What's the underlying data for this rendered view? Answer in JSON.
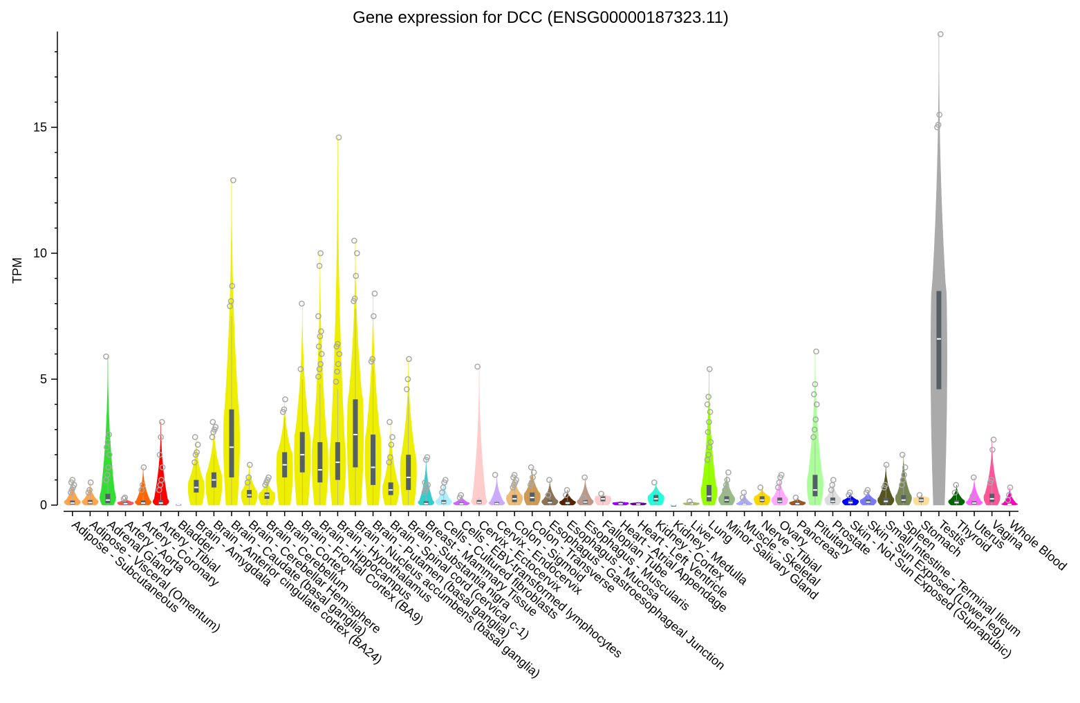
{
  "chart_data": {
    "type": "violin",
    "title": "Gene expression for DCC (ENSG00000187323.11)",
    "xlabel": "",
    "ylabel": "TPM",
    "ylim": [
      0,
      18.8
    ],
    "yticks": [
      0,
      5,
      10,
      15
    ],
    "categories": [
      "Adipose - Subcutaneous",
      "Adipose - Visceral (Omentum)",
      "Adrenal Gland",
      "Artery - Aorta",
      "Artery - Coronary",
      "Artery - Tibial",
      "Bladder",
      "Brain - Amygdala",
      "Brain - Anterior cingulate cortex (BA24)",
      "Brain - Caudate (basal ganglia)",
      "Brain - Cerebellar Hemisphere",
      "Brain - Cerebellum",
      "Brain - Cortex",
      "Brain - Frontal Cortex (BA9)",
      "Brain - Hippocampus",
      "Brain - Hypothalamus",
      "Brain - Nucleus accumbens (basal ganglia)",
      "Brain - Putamen (basal ganglia)",
      "Brain - Spinal cord (cervical c-1)",
      "Brain - Substantia nigra",
      "Breast - Mammary Tissue",
      "Cells - Cultured fibroblasts",
      "Cells - EBV-transformed lymphocytes",
      "Cervix - Ectocervix",
      "Cervix - Endocervix",
      "Colon - Sigmoid",
      "Colon - Transverse",
      "Esophagus - Gastroesophageal Junction",
      "Esophagus - Mucosa",
      "Esophagus - Muscularis",
      "Fallopian Tube",
      "Heart - Atrial Appendage",
      "Heart - Left Ventricle",
      "Kidney - Cortex",
      "Kidney - Medulla",
      "Liver",
      "Lung",
      "Minor Salivary Gland",
      "Muscle - Skeletal",
      "Nerve - Tibial",
      "Ovary",
      "Pancreas",
      "Pituitary",
      "Prostate",
      "Skin - Not Sun Exposed (Suprapubic)",
      "Skin - Sun Exposed (Lower leg)",
      "Small Intestine - Terminal Ileum",
      "Spleen",
      "Stomach",
      "Testis",
      "Thyroid",
      "Uterus",
      "Vagina",
      "Whole Blood"
    ],
    "series": [
      {
        "color": "#FFA54F",
        "median": 0.08,
        "q1": 0.03,
        "q3": 0.18,
        "whisker_max": 0.4,
        "violin_max": 1.0,
        "outliers": [
          0.5,
          0.6,
          0.7,
          0.8,
          0.9,
          1.0
        ]
      },
      {
        "color": "#FFA54F",
        "median": 0.1,
        "q1": 0.04,
        "q3": 0.2,
        "whisker_max": 0.45,
        "violin_max": 0.9,
        "outliers": [
          0.5,
          0.6,
          0.9
        ]
      },
      {
        "color": "#33DD33",
        "median": 0.2,
        "q1": 0.08,
        "q3": 0.45,
        "whisker_max": 0.9,
        "violin_max": 5.9,
        "outliers": [
          1.0,
          1.2,
          1.5,
          2.0,
          2.3,
          2.5,
          2.8,
          5.9
        ]
      },
      {
        "color": "#FF5555",
        "median": 0.06,
        "q1": 0.02,
        "q3": 0.12,
        "whisker_max": 0.25,
        "violin_max": 0.3,
        "outliers": [
          0.25,
          0.3
        ]
      },
      {
        "color": "#FF6600",
        "median": 0.08,
        "q1": 0.03,
        "q3": 0.18,
        "whisker_max": 0.4,
        "violin_max": 1.5,
        "outliers": [
          0.6,
          0.8,
          1.5
        ]
      },
      {
        "color": "#FF0000",
        "median": 0.08,
        "q1": 0.03,
        "q3": 0.2,
        "whisker_max": 0.45,
        "violin_max": 3.3,
        "outliers": [
          0.6,
          0.8,
          1.0,
          1.5,
          2.0,
          2.7,
          3.3
        ]
      },
      {
        "color": "#AAAAFF",
        "median": 0.03,
        "q1": 0.01,
        "q3": 0.05,
        "whisker_max": 0.08,
        "violin_max": 0.08,
        "outliers": []
      },
      {
        "color": "#EEEE00",
        "median": 0.7,
        "q1": 0.5,
        "q3": 1.0,
        "whisker_max": 1.6,
        "violin_max": 2.7,
        "outliers": [
          1.7,
          2.0,
          2.1,
          2.4,
          2.7
        ]
      },
      {
        "color": "#EEEE00",
        "median": 1.0,
        "q1": 0.7,
        "q3": 1.3,
        "whisker_max": 2.0,
        "violin_max": 3.3,
        "outliers": [
          2.7,
          2.9,
          3.0,
          3.1,
          3.3
        ]
      },
      {
        "color": "#EEEE00",
        "median": 2.3,
        "q1": 1.1,
        "q3": 3.8,
        "whisker_max": 7.5,
        "violin_max": 12.9,
        "outliers": [
          7.9,
          8.1,
          8.7,
          12.9
        ]
      },
      {
        "color": "#EEEE00",
        "median": 0.4,
        "q1": 0.3,
        "q3": 0.6,
        "whisker_max": 0.9,
        "violin_max": 1.6,
        "outliers": [
          0.9,
          1.1,
          1.6
        ]
      },
      {
        "color": "#EEEE00",
        "median": 0.4,
        "q1": 0.25,
        "q3": 0.5,
        "whisker_max": 0.8,
        "violin_max": 1.1,
        "outliers": [
          0.8,
          0.9,
          1.0,
          1.1
        ]
      },
      {
        "color": "#EEEE00",
        "median": 1.6,
        "q1": 1.1,
        "q3": 2.1,
        "whisker_max": 3.5,
        "violin_max": 4.2,
        "outliers": [
          3.7,
          3.8,
          4.2
        ]
      },
      {
        "color": "#EEEE00",
        "median": 2.0,
        "q1": 1.3,
        "q3": 2.9,
        "whisker_max": 5.0,
        "violin_max": 8.0,
        "outliers": [
          5.4,
          8.0
        ]
      },
      {
        "color": "#EEEE00",
        "median": 1.4,
        "q1": 0.9,
        "q3": 2.5,
        "whisker_max": 4.8,
        "violin_max": 10.0,
        "outliers": [
          5.1,
          5.4,
          5.6,
          6.0,
          6.3,
          6.7,
          6.9,
          7.5,
          9.5,
          10.0
        ]
      },
      {
        "color": "#EEEE00",
        "median": 1.7,
        "q1": 1.0,
        "q3": 2.5,
        "whisker_max": 4.6,
        "violin_max": 14.6,
        "outliers": [
          4.9,
          5.3,
          5.6,
          6.0,
          6.3,
          6.4,
          14.6
        ]
      },
      {
        "color": "#EEEE00",
        "median": 2.8,
        "q1": 1.5,
        "q3": 4.2,
        "whisker_max": 7.8,
        "violin_max": 10.5,
        "outliers": [
          8.1,
          8.2,
          9.1,
          10.0,
          10.5
        ]
      },
      {
        "color": "#EEEE00",
        "median": 1.5,
        "q1": 0.8,
        "q3": 2.8,
        "whisker_max": 5.5,
        "violin_max": 8.4,
        "outliers": [
          5.7,
          5.8,
          7.5,
          8.4
        ]
      },
      {
        "color": "#EEEE00",
        "median": 0.6,
        "q1": 0.4,
        "q3": 0.9,
        "whisker_max": 1.6,
        "violin_max": 3.3,
        "outliers": [
          1.7,
          1.9,
          2.4,
          2.7,
          3.3
        ]
      },
      {
        "color": "#EEEE00",
        "median": 1.1,
        "q1": 0.6,
        "q3": 2.0,
        "whisker_max": 4.3,
        "violin_max": 5.8,
        "outliers": [
          4.6,
          5.0,
          5.8
        ]
      },
      {
        "color": "#33CCCC",
        "median": 0.06,
        "q1": 0.02,
        "q3": 0.15,
        "whisker_max": 0.35,
        "violin_max": 1.9,
        "outliers": [
          0.5,
          0.6,
          0.7,
          0.8,
          0.9,
          1.8,
          1.9
        ]
      },
      {
        "color": "#AAEEFF",
        "median": 0.1,
        "q1": 0.05,
        "q3": 0.2,
        "whisker_max": 0.4,
        "violin_max": 1.0,
        "outliers": [
          0.5,
          0.7,
          0.9,
          1.0
        ]
      },
      {
        "color": "#CC66FF",
        "median": 0.05,
        "q1": 0.02,
        "q3": 0.1,
        "whisker_max": 0.2,
        "violin_max": 0.4,
        "outliers": [
          0.3,
          0.4
        ]
      },
      {
        "color": "#FFCCCC",
        "median": 0.1,
        "q1": 0.05,
        "q3": 0.2,
        "whisker_max": 0.3,
        "violin_max": 5.5,
        "outliers": [
          5.5
        ]
      },
      {
        "color": "#CCAAFF",
        "median": 0.06,
        "q1": 0.02,
        "q3": 0.12,
        "whisker_max": 0.2,
        "violin_max": 1.2,
        "outliers": [
          1.2
        ]
      },
      {
        "color": "#EEBB77",
        "median": 0.25,
        "q1": 0.12,
        "q3": 0.4,
        "whisker_max": 0.7,
        "violin_max": 1.2,
        "outliers": [
          0.7,
          0.8,
          0.9,
          1.0,
          1.1,
          1.2
        ]
      },
      {
        "color": "#CC9955",
        "median": 0.3,
        "q1": 0.15,
        "q3": 0.5,
        "whisker_max": 0.8,
        "violin_max": 1.5,
        "outliers": [
          0.8,
          0.9,
          1.1,
          1.3,
          1.5
        ]
      },
      {
        "color": "#8B7355",
        "median": 0.1,
        "q1": 0.05,
        "q3": 0.2,
        "whisker_max": 0.35,
        "violin_max": 1.0,
        "outliers": [
          0.4,
          1.0
        ]
      },
      {
        "color": "#552200",
        "median": 0.08,
        "q1": 0.03,
        "q3": 0.15,
        "whisker_max": 0.3,
        "violin_max": 0.6,
        "outliers": [
          0.4,
          0.6
        ]
      },
      {
        "color": "#BB9988",
        "median": 0.12,
        "q1": 0.06,
        "q3": 0.2,
        "whisker_max": 0.35,
        "violin_max": 1.1,
        "outliers": [
          0.3,
          1.1
        ]
      },
      {
        "color": "#FFCCCC",
        "median": 0.25,
        "q1": 0.15,
        "q3": 0.35,
        "whisker_max": 0.45,
        "violin_max": 0.45,
        "outliers": [
          0.45
        ]
      },
      {
        "color": "#9900FF",
        "median": 0.05,
        "q1": 0.02,
        "q3": 0.1,
        "whisker_max": 0.15,
        "violin_max": 0.15,
        "outliers": []
      },
      {
        "color": "#660099",
        "median": 0.04,
        "q1": 0.01,
        "q3": 0.08,
        "whisker_max": 0.12,
        "violin_max": 0.12,
        "outliers": []
      },
      {
        "color": "#22FFDD",
        "median": 0.25,
        "q1": 0.15,
        "q3": 0.4,
        "whisker_max": 0.7,
        "violin_max": 0.9,
        "outliers": [
          0.9
        ]
      },
      {
        "color": "#22FFDD",
        "median": 0.0,
        "q1": 0.0,
        "q3": 0.0,
        "whisker_max": 0.0,
        "violin_max": 0.0,
        "outliers": []
      },
      {
        "color": "#AABB66",
        "median": 0.05,
        "q1": 0.02,
        "q3": 0.09,
        "whisker_max": 0.12,
        "violin_max": 0.15,
        "outliers": [
          0.15
        ]
      },
      {
        "color": "#99FF00",
        "median": 0.35,
        "q1": 0.15,
        "q3": 0.8,
        "whisker_max": 1.7,
        "violin_max": 5.4,
        "outliers": [
          1.8,
          2.0,
          2.3,
          2.5,
          2.9,
          3.3,
          3.7,
          4.0,
          4.3,
          5.4
        ]
      },
      {
        "color": "#99BB88",
        "median": 0.2,
        "q1": 0.1,
        "q3": 0.35,
        "whisker_max": 0.6,
        "violin_max": 1.3,
        "outliers": [
          0.6,
          0.8,
          1.0,
          1.3
        ]
      },
      {
        "color": "#AAAAFF",
        "median": 0.04,
        "q1": 0.01,
        "q3": 0.08,
        "whisker_max": 0.2,
        "violin_max": 0.5,
        "outliers": [
          0.3,
          0.5
        ]
      },
      {
        "color": "#FFD700",
        "median": 0.2,
        "q1": 0.12,
        "q3": 0.35,
        "whisker_max": 0.6,
        "violin_max": 0.7,
        "outliers": [
          0.7
        ]
      },
      {
        "color": "#FFAAFF",
        "median": 0.15,
        "q1": 0.08,
        "q3": 0.3,
        "whisker_max": 0.6,
        "violin_max": 1.2,
        "outliers": [
          0.7,
          0.9,
          1.1,
          1.2
        ]
      },
      {
        "color": "#995522",
        "median": 0.06,
        "q1": 0.03,
        "q3": 0.12,
        "whisker_max": 0.25,
        "violin_max": 0.3,
        "outliers": [
          0.3
        ]
      },
      {
        "color": "#AAFF99",
        "median": 0.6,
        "q1": 0.35,
        "q3": 1.2,
        "whisker_max": 2.5,
        "violin_max": 6.1,
        "outliers": [
          2.7,
          3.0,
          3.4,
          4.0,
          4.4,
          4.8,
          6.1
        ]
      },
      {
        "color": "#DDDDDD",
        "median": 0.15,
        "q1": 0.08,
        "q3": 0.3,
        "whisker_max": 0.6,
        "violin_max": 1.0,
        "outliers": [
          0.6,
          0.8,
          1.0
        ]
      },
      {
        "color": "#0000FF",
        "median": 0.1,
        "q1": 0.05,
        "q3": 0.2,
        "whisker_max": 0.35,
        "violin_max": 0.5,
        "outliers": [
          0.4,
          0.5
        ]
      },
      {
        "color": "#7777FF",
        "median": 0.12,
        "q1": 0.06,
        "q3": 0.22,
        "whisker_max": 0.4,
        "violin_max": 0.6,
        "outliers": [
          0.5,
          0.6
        ]
      },
      {
        "color": "#555522",
        "median": 0.15,
        "q1": 0.07,
        "q3": 0.3,
        "whisker_max": 0.6,
        "violin_max": 1.6,
        "outliers": [
          0.7,
          0.8,
          1.6
        ]
      },
      {
        "color": "#778855",
        "median": 0.2,
        "q1": 0.1,
        "q3": 0.4,
        "whisker_max": 0.7,
        "violin_max": 2.0,
        "outliers": [
          0.8,
          1.0,
          1.2,
          1.5,
          2.0
        ]
      },
      {
        "color": "#FFDD99",
        "median": 0.2,
        "q1": 0.12,
        "q3": 0.3,
        "whisker_max": 0.4,
        "violin_max": 0.4,
        "outliers": [
          0.4
        ]
      },
      {
        "color": "#AAAAAA",
        "median": 6.6,
        "q1": 4.6,
        "q3": 8.5,
        "whisker_max": 14.5,
        "violin_max": 18.7,
        "outliers": [
          15.0,
          15.1,
          15.5,
          18.7
        ]
      },
      {
        "color": "#006600",
        "median": 0.1,
        "q1": 0.05,
        "q3": 0.2,
        "whisker_max": 0.4,
        "violin_max": 0.8,
        "outliers": [
          0.5,
          0.8
        ]
      },
      {
        "color": "#FF66FF",
        "median": 0.08,
        "q1": 0.03,
        "q3": 0.15,
        "whisker_max": 0.3,
        "violin_max": 1.1,
        "outliers": [
          0.35,
          1.1
        ]
      },
      {
        "color": "#FF5599",
        "median": 0.25,
        "q1": 0.12,
        "q3": 0.45,
        "whisker_max": 0.8,
        "violin_max": 2.6,
        "outliers": [
          0.9,
          1.0,
          2.2,
          2.6
        ]
      },
      {
        "color": "#FF00BB",
        "median": 0.03,
        "q1": 0.01,
        "q3": 0.06,
        "whisker_max": 0.15,
        "violin_max": 0.7,
        "outliers": [
          0.2,
          0.4,
          0.7
        ]
      }
    ]
  }
}
